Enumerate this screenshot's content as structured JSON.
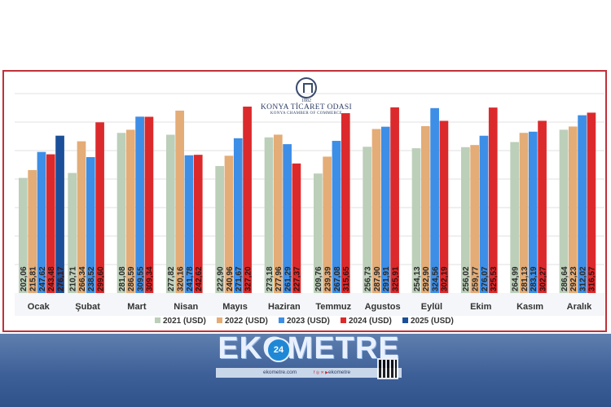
{
  "chart_data": {
    "type": "bar",
    "title": "",
    "xlabel": "",
    "ylabel": "",
    "ylim": [
      0,
      360
    ],
    "grid": true,
    "legend_position": "bottom",
    "categories": [
      "Ocak",
      "Şubat",
      "Mart",
      "Nisan",
      "Mayıs",
      "Haziran",
      "Temmuz",
      "Agustos",
      "Eylül",
      "Ekim",
      "Kasım",
      "Aralık"
    ],
    "series": [
      {
        "name": "2021 (USD)",
        "color": "#bccfb9",
        "values": [
          202.06,
          210.71,
          281.08,
          277.82,
          222.9,
          273.18,
          209.76,
          256.73,
          254.13,
          256.02,
          264.99,
          286.64
        ],
        "labels": [
          "202,06",
          "210,71",
          "281,08",
          "277,82",
          "222,90",
          "273,18",
          "209,76",
          "256,73",
          "254,13",
          "256,02",
          "264,99",
          "286,64"
        ]
      },
      {
        "name": "2022 (USD)",
        "color": "#e4ac76",
        "values": [
          215.81,
          266.34,
          286.59,
          320.16,
          240.96,
          277.96,
          239.39,
          287.9,
          292.9,
          259.77,
          281.13,
          292.23
        ],
        "labels": [
          "215,81",
          "266,34",
          "286,59",
          "320,16",
          "240,96",
          "277,96",
          "239,39",
          "287,90",
          "292,90",
          "259,77",
          "281,13",
          "292,23"
        ]
      },
      {
        "name": "2023 (USD)",
        "color": "#3d8ee6",
        "values": [
          247.62,
          238.52,
          309.55,
          241.78,
          271.67,
          261.29,
          267.08,
          291.91,
          324.56,
          276.07,
          283.19,
          312.02
        ],
        "labels": [
          "247,62",
          "238,52",
          "309,55",
          "241,78",
          "271,67",
          "261,29",
          "267,08",
          "291,91",
          "324,56",
          "276,07",
          "283,19",
          "312,02"
        ]
      },
      {
        "name": "2024 (USD)",
        "color": "#dc2a2c",
        "values": [
          243.48,
          299.6,
          309.34,
          242.62,
          327.2,
          227.37,
          315.65,
          325.91,
          302.19,
          325.53,
          302.27,
          316.57
        ],
        "labels": [
          "243,48",
          "299,60",
          "309,34",
          "242,62",
          "327,20",
          "227,37",
          "315,65",
          "325,91",
          "302,19",
          "325,53",
          "302,27",
          "316,57"
        ]
      },
      {
        "name": "2025 (USD)",
        "color": "#1b4f99",
        "values": [
          276.17,
          null,
          null,
          null,
          null,
          null,
          null,
          null,
          null,
          null,
          null,
          null
        ],
        "labels": [
          "276,17",
          "",
          "",
          "",
          "",
          "",
          "",
          "",
          "",
          "",
          "",
          ""
        ]
      }
    ]
  },
  "logo": {
    "year": "1882",
    "name": "KONYA TİCARET ODASI",
    "name_en": "KONYA CHAMBER OF COMMERCE"
  },
  "brand": {
    "wordmark": "EKOMETRE",
    "badge": "24",
    "url": "ekometre.com",
    "handle": "ekometre",
    "social_icons": "f ◎ ✕ ▶"
  }
}
